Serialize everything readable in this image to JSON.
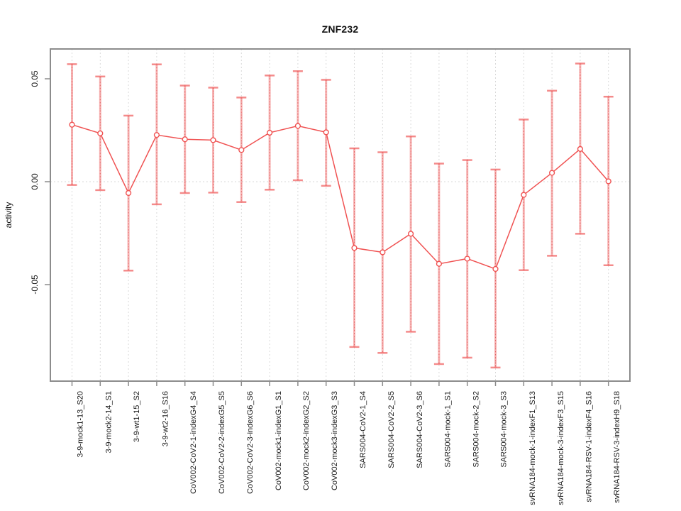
{
  "chart_data": {
    "type": "line",
    "title": "ZNF232",
    "xlabel": "",
    "ylabel": "activity",
    "ylim": [
      -0.097,
      0.063
    ],
    "yticks": [
      {
        "value": 0.05,
        "label": "0.05"
      },
      {
        "value": 0.0,
        "label": "0.00"
      },
      {
        "value": -0.05,
        "label": "-0.05"
      }
    ],
    "grid": {
      "vertical_per_category": true,
      "horizontal_zero_line": true,
      "style": "dotted"
    },
    "legend_position": "none",
    "point_style": "open-circle",
    "error_bars": true,
    "categories": [
      "3-9-mock1-13_S20",
      "3-9-mock2-14_S1",
      "3-9-wt1-15_S2",
      "3-9-wt2-16_S16",
      "CoV002-CoV2-1-indexG4_S4",
      "CoV002-CoV2-2-indexG5_S5",
      "CoV002-CoV2-3-indexG6_S6",
      "CoV002-mock1-indexG1_S1",
      "CoV002-mock2-indexG2_S2",
      "CoV002-mock3-indexG3_S3",
      "SARS004-CoV2-1_S4",
      "SARS004-CoV2-2_S5",
      "SARS004-CoV2-3_S6",
      "SARS004-mock-1_S1",
      "SARS004-mock-2_S2",
      "SARS004-mock-3_S3",
      "svRNA184-mock-1-indexF1_S13",
      "svRNA184-mock-3-indexF3_S15",
      "svRNA184-RSV-1-indexF4_S16",
      "svRNA184-RSV-3-indexH9_S18"
    ],
    "series": [
      {
        "name": "activity",
        "values": [
          0.0277,
          0.0235,
          -0.0055,
          0.0227,
          0.0206,
          0.0202,
          0.0154,
          0.0238,
          0.0271,
          0.024,
          -0.0322,
          -0.0343,
          -0.0253,
          -0.0399,
          -0.0374,
          -0.0424,
          -0.0064,
          0.0043,
          0.0159,
          0.0002
        ],
        "error_upper": [
          0.0571,
          0.0511,
          0.0321,
          0.057,
          0.0467,
          0.0457,
          0.0409,
          0.0516,
          0.0537,
          0.0495,
          0.0162,
          0.0143,
          0.022,
          0.0088,
          0.0105,
          0.0059,
          0.0302,
          0.0442,
          0.0574,
          0.0413
        ],
        "error_lower": [
          -0.0016,
          -0.0041,
          -0.0432,
          -0.011,
          -0.0055,
          -0.0053,
          -0.0099,
          -0.0039,
          0.0007,
          -0.002,
          -0.0803,
          -0.0832,
          -0.0729,
          -0.0886,
          -0.0855,
          -0.0903,
          -0.043,
          -0.036,
          -0.0253,
          -0.0406
        ]
      }
    ],
    "colors": {
      "series": "#f05252",
      "error_bar": "rgba(240,90,90,0.45)",
      "error_bar_cap": "rgba(240,90,90,0.70)",
      "error_bar_dots": "rgba(225,60,60,0.60)",
      "grid": "#d9d9d9",
      "frame": "#8c8c8c",
      "text": "#1a1a1a"
    }
  }
}
